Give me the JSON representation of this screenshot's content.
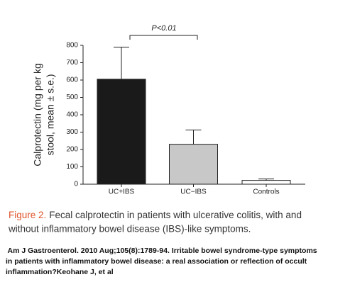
{
  "chart_data": {
    "type": "bar",
    "categories": [
      "UC+IBS",
      "UC−IBS",
      "Controls"
    ],
    "values": [
      605,
      230,
      22
    ],
    "errors": [
      185,
      82,
      8
    ],
    "colors": [
      "#1a1a1a",
      "#c8c8c8",
      "#ffffff"
    ],
    "ylim": [
      0,
      800
    ],
    "yticks": [
      0,
      100,
      200,
      300,
      400,
      500,
      600,
      700,
      800
    ],
    "ylabel": [
      "Calprotectin (mg per kg",
      "stool, mean ± s.e.)"
    ],
    "annotation": "P<0.01"
  },
  "caption": {
    "label": "Figure 2.",
    "lines": [
      "Fecal calprotectin in patients with ulcerative colitis, with and",
      "without inflammatory bowel disease (IBS)-like symptoms."
    ]
  },
  "citation": [
    " Am J Gastroenterol. 2010 Aug;105(8):1789-94. Irritable bowel syndrome-type symptoms",
    "in patients with inflammatory bowel disease: a real association or reflection of occult",
    "inflammation?Keohane J, et al"
  ]
}
